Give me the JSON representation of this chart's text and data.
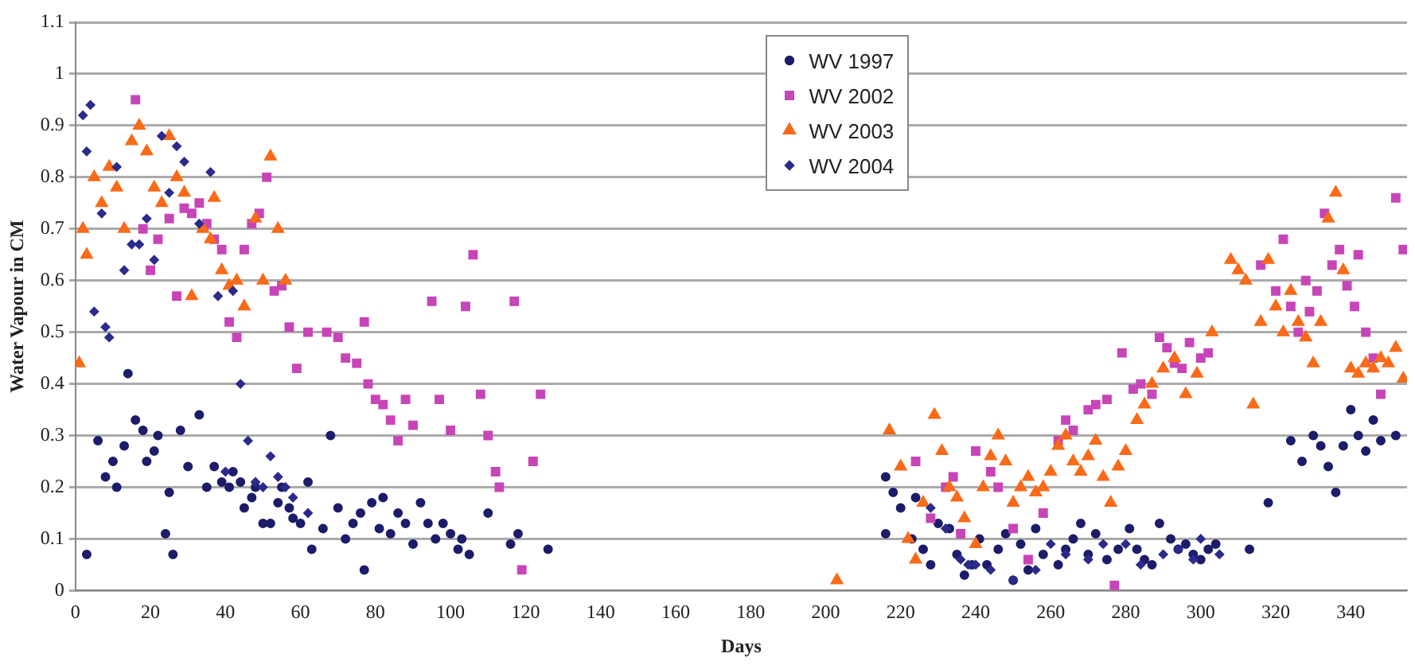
{
  "chart_data": {
    "type": "scatter",
    "xlabel": "Days",
    "ylabel": "Water Vapour in CM",
    "xlim": [
      0,
      355
    ],
    "xticks": [
      0,
      20,
      40,
      60,
      80,
      100,
      120,
      140,
      160,
      180,
      200,
      220,
      240,
      260,
      280,
      300,
      320,
      340
    ],
    "ylim": [
      0,
      1.1
    ],
    "yticks": [
      0,
      0.1,
      0.2,
      0.3,
      0.4,
      0.5,
      0.6,
      0.7,
      0.8,
      0.9,
      1,
      1.1
    ],
    "grid": "y",
    "legend": "top",
    "series": [
      {
        "name": "WV 1997",
        "color": "#1c1c6a",
        "x": [
          3,
          6,
          8,
          10,
          11,
          13,
          14,
          16,
          18,
          19,
          21,
          22,
          24,
          25,
          26,
          28,
          30,
          33,
          35,
          37,
          39,
          41,
          42,
          44,
          45,
          47,
          48,
          50,
          52,
          54,
          55,
          57,
          58,
          60,
          62,
          63,
          66,
          68,
          70,
          72,
          74,
          76,
          77,
          79,
          81,
          82,
          84,
          86,
          88,
          90,
          92,
          94,
          96,
          98,
          100,
          102,
          103,
          105,
          110,
          116,
          118,
          126,
          216,
          216,
          218,
          220,
          223,
          224,
          226,
          228,
          230,
          233,
          235,
          237,
          239,
          241,
          243,
          246,
          248,
          250,
          252,
          254,
          256,
          258,
          262,
          264,
          266,
          268,
          270,
          272,
          275,
          278,
          281,
          283,
          285,
          287,
          289,
          292,
          294,
          296,
          298,
          300,
          302,
          304,
          313,
          318,
          324,
          327,
          330,
          332,
          334,
          336,
          338,
          340,
          342,
          344,
          346,
          348,
          352
        ],
        "values": [
          0.07,
          0.29,
          0.22,
          0.25,
          0.2,
          0.28,
          0.42,
          0.33,
          0.31,
          0.25,
          0.27,
          0.3,
          0.11,
          0.19,
          0.07,
          0.31,
          0.24,
          0.34,
          0.2,
          0.24,
          0.21,
          0.2,
          0.23,
          0.21,
          0.16,
          0.18,
          0.2,
          0.13,
          0.13,
          0.17,
          0.2,
          0.16,
          0.14,
          0.13,
          0.21,
          0.08,
          0.12,
          0.3,
          0.16,
          0.1,
          0.13,
          0.15,
          0.04,
          0.17,
          0.12,
          0.18,
          0.11,
          0.15,
          0.13,
          0.09,
          0.17,
          0.13,
          0.1,
          0.13,
          0.11,
          0.08,
          0.1,
          0.07,
          0.15,
          0.09,
          0.11,
          0.08,
          0.22,
          0.11,
          0.19,
          0.16,
          0.1,
          0.18,
          0.08,
          0.05,
          0.13,
          0.12,
          0.07,
          0.03,
          0.05,
          0.1,
          0.05,
          0.08,
          0.11,
          0.02,
          0.09,
          0.04,
          0.12,
          0.07,
          0.05,
          0.08,
          0.1,
          0.13,
          0.07,
          0.11,
          0.06,
          0.08,
          0.12,
          0.08,
          0.06,
          0.05,
          0.13,
          0.1,
          0.08,
          0.09,
          0.07,
          0.06,
          0.08,
          0.09,
          0.08,
          0.17,
          0.29,
          0.25,
          0.3,
          0.28,
          0.24,
          0.19,
          0.28,
          0.35,
          0.3,
          0.27,
          0.33,
          0.29,
          0.3
        ]
      },
      {
        "name": "WV 2002",
        "color": "#c845b8",
        "marker": "square",
        "x": [
          16,
          18,
          20,
          22,
          25,
          27,
          29,
          31,
          33,
          35,
          37,
          39,
          41,
          43,
          45,
          47,
          49,
          51,
          53,
          55,
          57,
          59,
          62,
          67,
          70,
          72,
          75,
          77,
          78,
          80,
          82,
          84,
          86,
          88,
          90,
          95,
          97,
          100,
          104,
          106,
          108,
          110,
          112,
          113,
          117,
          119,
          122,
          124,
          224,
          228,
          232,
          234,
          236,
          240,
          244,
          246,
          250,
          254,
          258,
          262,
          264,
          266,
          270,
          272,
          275,
          277,
          279,
          282,
          284,
          287,
          289,
          291,
          293,
          295,
          297,
          300,
          302,
          316,
          320,
          322,
          324,
          326,
          328,
          329,
          331,
          333,
          335,
          337,
          339,
          341,
          342,
          344,
          346,
          348,
          352,
          354
        ],
        "values": [
          0.95,
          0.7,
          0.62,
          0.68,
          0.72,
          0.57,
          0.74,
          0.73,
          0.75,
          0.71,
          0.68,
          0.66,
          0.52,
          0.49,
          0.66,
          0.71,
          0.73,
          0.8,
          0.58,
          0.59,
          0.51,
          0.43,
          0.5,
          0.5,
          0.49,
          0.45,
          0.44,
          0.52,
          0.4,
          0.37,
          0.36,
          0.33,
          0.29,
          0.37,
          0.32,
          0.56,
          0.37,
          0.31,
          0.55,
          0.65,
          0.38,
          0.3,
          0.23,
          0.2,
          0.56,
          0.04,
          0.25,
          0.38,
          0.25,
          0.14,
          0.2,
          0.22,
          0.11,
          0.27,
          0.23,
          0.2,
          0.12,
          0.06,
          0.15,
          0.29,
          0.33,
          0.31,
          0.35,
          0.36,
          0.37,
          0.01,
          0.46,
          0.39,
          0.4,
          0.38,
          0.49,
          0.47,
          0.44,
          0.43,
          0.48,
          0.45,
          0.46,
          0.63,
          0.58,
          0.68,
          0.55,
          0.5,
          0.6,
          0.54,
          0.58,
          0.73,
          0.63,
          0.66,
          0.59,
          0.55,
          0.65,
          0.5,
          0.45,
          0.38,
          0.76,
          0.66
        ]
      },
      {
        "name": "WV 2003",
        "color": "#fa6a18",
        "marker": "triangle",
        "x": [
          1,
          2,
          3,
          5,
          7,
          9,
          11,
          13,
          15,
          17,
          19,
          21,
          23,
          25,
          27,
          29,
          31,
          34,
          36,
          37,
          39,
          41,
          43,
          45,
          48,
          50,
          52,
          54,
          56,
          203,
          217,
          220,
          222,
          224,
          226,
          229,
          231,
          233,
          235,
          237,
          240,
          242,
          244,
          246,
          248,
          250,
          252,
          254,
          256,
          258,
          260,
          262,
          264,
          266,
          268,
          270,
          272,
          274,
          276,
          278,
          280,
          283,
          285,
          287,
          290,
          293,
          296,
          299,
          303,
          308,
          310,
          312,
          314,
          316,
          318,
          320,
          322,
          324,
          326,
          328,
          330,
          332,
          334,
          336,
          338,
          340,
          342,
          344,
          346,
          348,
          350,
          352,
          354
        ],
        "values": [
          0.44,
          0.7,
          0.65,
          0.8,
          0.75,
          0.82,
          0.78,
          0.7,
          0.87,
          0.9,
          0.85,
          0.78,
          0.75,
          0.88,
          0.8,
          0.77,
          0.57,
          0.7,
          0.68,
          0.76,
          0.62,
          0.59,
          0.6,
          0.55,
          0.72,
          0.6,
          0.84,
          0.7,
          0.6,
          0.02,
          0.31,
          0.24,
          0.1,
          0.06,
          0.17,
          0.34,
          0.27,
          0.2,
          0.18,
          0.14,
          0.09,
          0.2,
          0.26,
          0.3,
          0.25,
          0.17,
          0.2,
          0.22,
          0.19,
          0.2,
          0.23,
          0.28,
          0.3,
          0.25,
          0.23,
          0.26,
          0.29,
          0.22,
          0.17,
          0.24,
          0.27,
          0.33,
          0.36,
          0.4,
          0.43,
          0.45,
          0.38,
          0.42,
          0.5,
          0.64,
          0.62,
          0.6,
          0.36,
          0.52,
          0.64,
          0.55,
          0.5,
          0.58,
          0.52,
          0.49,
          0.44,
          0.52,
          0.72,
          0.77,
          0.62,
          0.43,
          0.42,
          0.44,
          0.43,
          0.45,
          0.44,
          0.47,
          0.41
        ]
      },
      {
        "name": "WV 2004",
        "color": "#2b2b8c",
        "marker": "diamond",
        "x": [
          2,
          3,
          4,
          5,
          7,
          8,
          9,
          11,
          13,
          15,
          17,
          19,
          21,
          23,
          25,
          27,
          29,
          33,
          36,
          38,
          40,
          42,
          44,
          46,
          48,
          50,
          52,
          54,
          56,
          58,
          62,
          228,
          232,
          236,
          238,
          240,
          244,
          250,
          256,
          260,
          264,
          270,
          274,
          280,
          284,
          290,
          294,
          298,
          300,
          305
        ],
        "values": [
          0.92,
          0.85,
          0.94,
          0.54,
          0.73,
          0.51,
          0.49,
          0.82,
          0.62,
          0.67,
          0.67,
          0.72,
          0.64,
          0.88,
          0.77,
          0.86,
          0.83,
          0.71,
          0.81,
          0.57,
          0.23,
          0.58,
          0.4,
          0.29,
          0.21,
          0.2,
          0.26,
          0.22,
          0.2,
          0.18,
          0.15,
          0.16,
          0.12,
          0.06,
          0.05,
          0.05,
          0.04,
          0.02,
          0.04,
          0.09,
          0.07,
          0.06,
          0.09,
          0.09,
          0.05,
          0.07,
          0.08,
          0.06,
          0.1,
          0.07
        ]
      }
    ]
  }
}
